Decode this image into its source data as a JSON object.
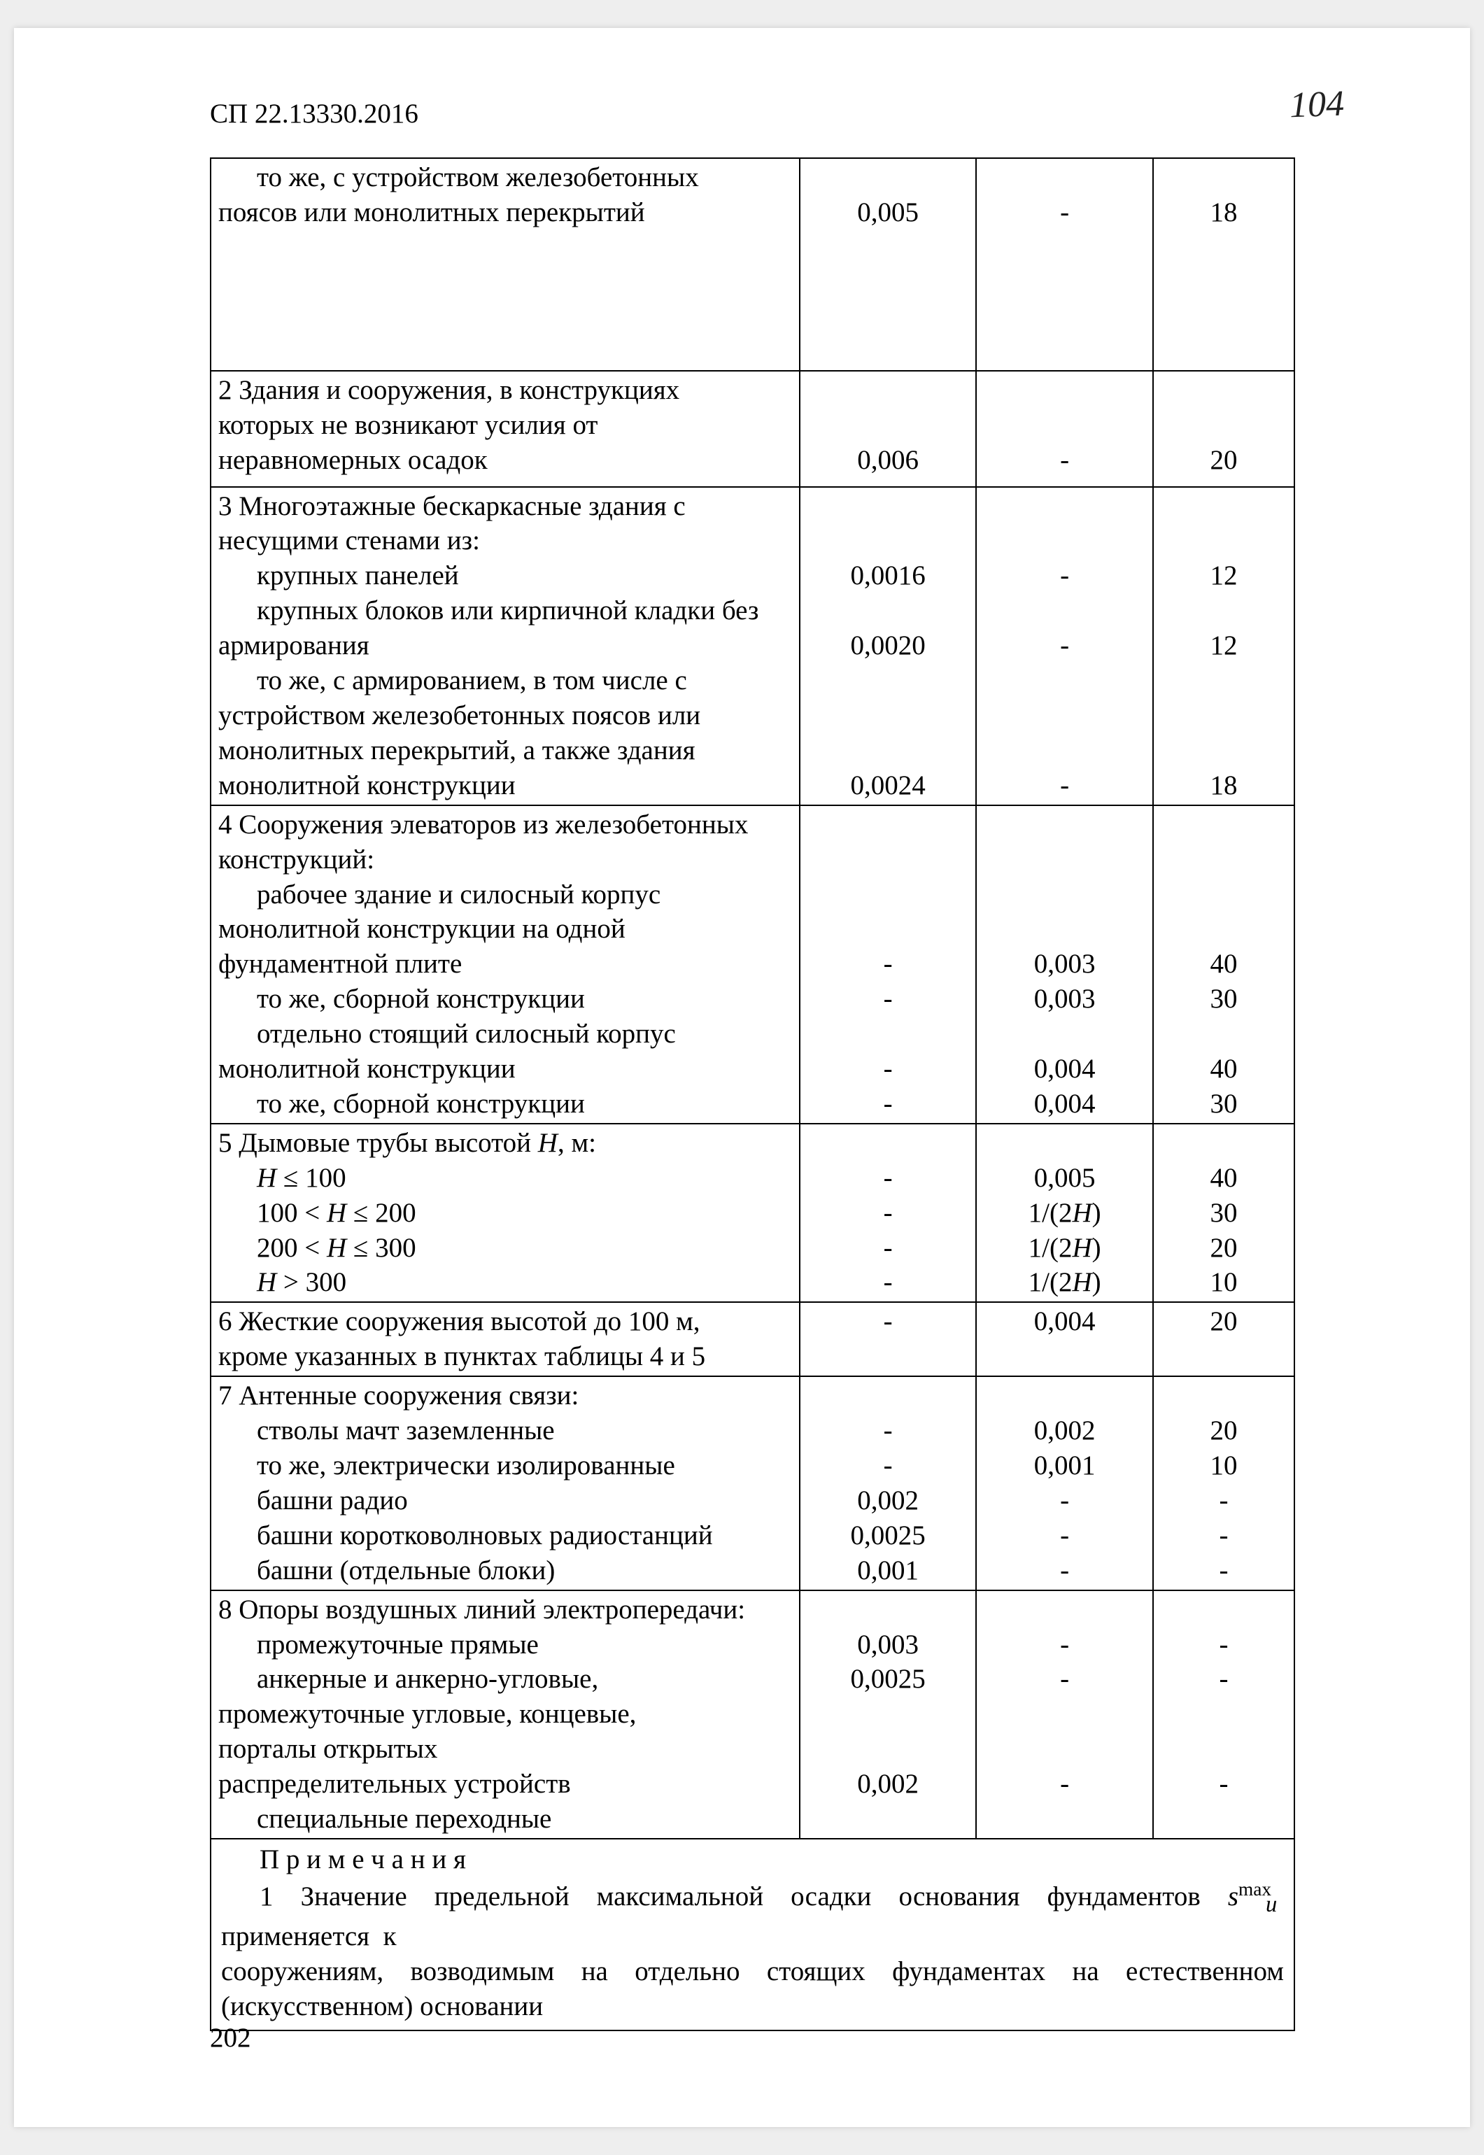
{
  "page": {
    "handwritten_number": "104",
    "doc_code": "СП 22.13330.2016",
    "footer_page": "202"
  },
  "colors": {
    "page_bg": "#ffffff",
    "text": "#000000",
    "border": "#000000",
    "outer_bg": "#eeeeee"
  },
  "typography": {
    "body_font": "Times New Roman",
    "body_size_pt": 14,
    "handwritten_font": "Comic Sans MS"
  },
  "table": {
    "col_widths_pct": [
      50,
      15,
      15,
      12
    ],
    "rows": [
      {
        "c1_lines": [
          "    то же, с устройством железобетонных",
          "поясов или монолитных перекрытий"
        ],
        "c2": [
          "",
          "0,005"
        ],
        "c3": [
          "",
          "-"
        ],
        "c4": [
          "",
          "18"
        ],
        "pad": "big"
      },
      {
        "c1_lines": [
          "2 Здания и сооружения, в конструкциях",
          "которых не возникают усилия от",
          "неравномерных осадок"
        ],
        "c2": [
          "",
          "",
          "0,006"
        ],
        "c3": [
          "",
          "",
          "-"
        ],
        "c4": [
          "",
          "",
          "20"
        ],
        "pad": "mid"
      },
      {
        "c1_lines": [
          "3 Многоэтажные бескаркасные здания с",
          "несущими стенами из:",
          "    крупных панелей",
          "    крупных блоков или кирпичной кладки без",
          "армирования",
          "    то же, с армированием, в том числе с",
          "устройством железобетонных поясов или",
          "монолитных перекрытий, а также здания",
          "монолитной конструкции"
        ],
        "c2": [
          "",
          "",
          "0,0016",
          "",
          "0,0020",
          "",
          "",
          "",
          "0,0024"
        ],
        "c3": [
          "",
          "",
          "-",
          "",
          "-",
          "",
          "",
          "",
          "-"
        ],
        "c4": [
          "",
          "",
          "12",
          "",
          "12",
          "",
          "",
          "",
          "18"
        ]
      },
      {
        "c1_lines": [
          "4 Сооружения элеваторов из железобетонных",
          "конструкций:",
          "    рабочее здание и силосный корпус",
          "монолитной конструкции на одной",
          "фундаментной плите",
          "    то же, сборной конструкции",
          "    отдельно стоящий силосный корпус",
          "монолитной конструкции",
          "    то же, сборной конструкции"
        ],
        "c2": [
          "",
          "",
          "",
          "",
          "-",
          "-",
          "",
          "-",
          "-"
        ],
        "c3": [
          "",
          "",
          "",
          "",
          "0,003",
          "0,003",
          "",
          "0,004",
          "0,004"
        ],
        "c4": [
          "",
          "",
          "",
          "",
          "40",
          "30",
          "",
          "40",
          "30"
        ]
      },
      {
        "c1_lines_html": [
          "5 Дымовые трубы высотой <span class=\"ital\">H</span>, м:",
          "    <span class=\"ital\">H</span> ≤ 100",
          "    100 &lt; <span class=\"ital\">H</span> ≤ 200",
          "    200 &lt; <span class=\"ital\">H</span> ≤ 300",
          "    <span class=\"ital\">H</span> &gt; 300"
        ],
        "c2": [
          "",
          "-",
          "-",
          "-",
          "-"
        ],
        "c3_html": [
          "",
          "0,005",
          "1/(2<span class=\"ital\">H</span>)",
          "1/(2<span class=\"ital\">H</span>)",
          "1/(2<span class=\"ital\">H</span>)"
        ],
        "c4": [
          "",
          "40",
          "30",
          "20",
          "10"
        ]
      },
      {
        "c1_lines": [
          "6 Жесткие сооружения высотой до 100 м,",
          "кроме указанных в пунктах таблицы 4 и 5"
        ],
        "c2": [
          "-",
          ""
        ],
        "c3": [
          "0,004",
          ""
        ],
        "c4": [
          "20",
          ""
        ]
      },
      {
        "c1_lines": [
          "7 Антенные сооружения связи:",
          "    стволы мачт заземленные",
          "    то же, электрически изолированные",
          "    башни радио",
          "    башни коротковолновых радиостанций",
          "    башни (отдельные блоки)"
        ],
        "c2": [
          "",
          "-",
          "-",
          "0,002",
          "0,0025",
          "0,001"
        ],
        "c3": [
          "",
          "0,002",
          "0,001",
          "-",
          "-",
          "-"
        ],
        "c4": [
          "",
          "20",
          "10",
          "-",
          "-",
          "-"
        ]
      },
      {
        "c1_lines": [
          "8 Опоры воздушных линий электропередачи:",
          "    промежуточные прямые",
          "    анкерные и анкерно-угловые,",
          "промежуточные угловые, концевые,",
          "порталы открытых",
          "распределительных устройств",
          "    специальные переходные"
        ],
        "c2": [
          "",
          "0,003",
          "0,0025",
          "",
          "",
          "0,002",
          ""
        ],
        "c3": [
          "",
          "-",
          "-",
          "",
          "",
          "-",
          ""
        ],
        "c4": [
          "",
          "-",
          "-",
          "",
          "",
          "-",
          ""
        ]
      }
    ],
    "notes": {
      "heading": "П р и м е ч а н и я",
      "line1_pre": "1  Значение  предельной  максимальной  осадки  основания  фундаментов  ",
      "line1_symbol_html": "<span class=\"ital\">s</span><sup class=\"small\">max</sup><sub style=\"font-style:italic; margin-left:-8px;\">u</sub>",
      "line1_post": "  применяется  к",
      "line2": "сооружениям, возводимым на отдельно стоящих фундаментах на естественном (искусственном) основании"
    }
  }
}
